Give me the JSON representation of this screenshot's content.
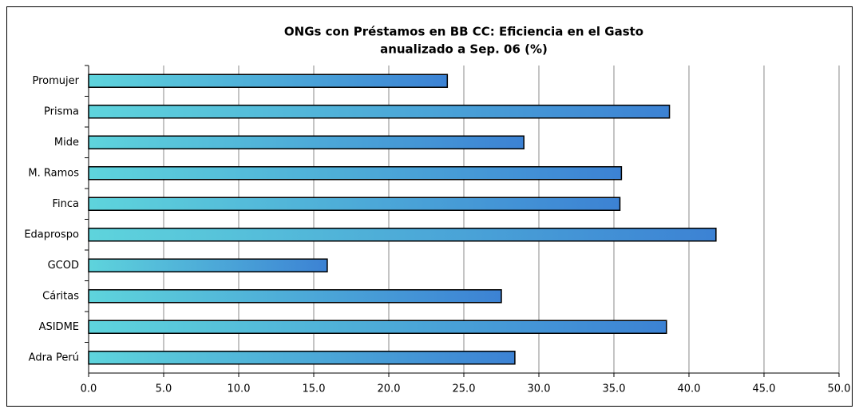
{
  "chart_data": {
    "type": "bar",
    "orientation": "horizontal",
    "title": [
      "ONGs con Préstamos en BB CC:  Eficiencia en el Gasto",
      "anualizado a Sep. 06 (%)"
    ],
    "categories": [
      "Promujer",
      "Prisma",
      "Mide",
      "M. Ramos",
      "Finca",
      "Edaprospo",
      "GCOD",
      "Cáritas",
      "ASIDME",
      "Adra Perú"
    ],
    "values": [
      23.9,
      38.7,
      29.0,
      35.5,
      35.4,
      41.8,
      15.9,
      27.5,
      38.5,
      28.4
    ],
    "color": [
      "#5ed4dc",
      "#3c82d4"
    ],
    "xlim": [
      0,
      50
    ],
    "xticks": [
      {
        "value": 0,
        "label": "0.0"
      },
      {
        "value": 5,
        "label": "5.0"
      },
      {
        "value": 10,
        "label": "10.0"
      },
      {
        "value": 15,
        "label": "15.0"
      },
      {
        "value": 20,
        "label": "20.0"
      },
      {
        "value": 25,
        "label": "25.0"
      },
      {
        "value": 30,
        "label": "30.0"
      },
      {
        "value": 35,
        "label": "35.0"
      },
      {
        "value": 40,
        "label": "40.0"
      },
      {
        "value": 45,
        "label": "45.0"
      },
      {
        "value": 50,
        "label": "50.0"
      }
    ],
    "grid": true
  }
}
